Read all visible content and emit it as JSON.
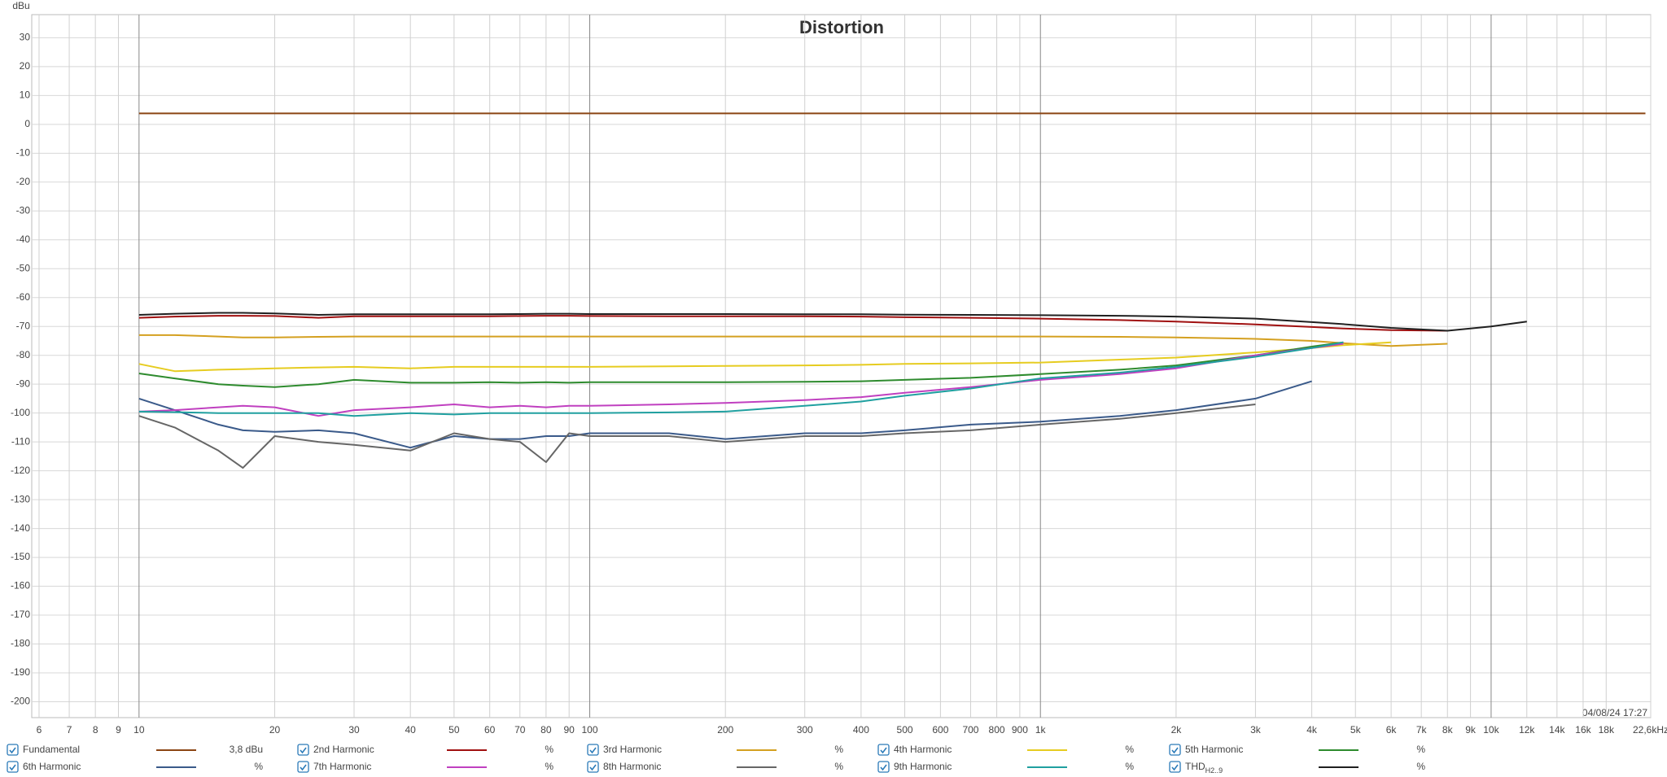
{
  "chart_data": {
    "type": "line",
    "title": "Distortion",
    "y_label": "dBu",
    "timestamp": "04/08/24 17:27",
    "x_scale": "log",
    "grid": true,
    "x": [
      10,
      12,
      15,
      17,
      20,
      25,
      30,
      40,
      50,
      60,
      70,
      80,
      90,
      100,
      150,
      200,
      300,
      400,
      500,
      700,
      1000,
      1500,
      2000,
      3000,
      4000,
      4700,
      6000,
      8000,
      10000,
      12000,
      22000
    ],
    "xlim": [
      5.78,
      22600
    ],
    "xticks": [
      6,
      7,
      8,
      9,
      10,
      20,
      30,
      40,
      50,
      60,
      70,
      80,
      90,
      100,
      200,
      300,
      400,
      500,
      600,
      700,
      800,
      900,
      {
        "value": 1000,
        "label": "1k"
      },
      {
        "value": 2000,
        "label": "2k"
      },
      {
        "value": 3000,
        "label": "3k"
      },
      {
        "value": 4000,
        "label": "4k"
      },
      {
        "value": 5000,
        "label": "5k"
      },
      {
        "value": 6000,
        "label": "6k"
      },
      {
        "value": 7000,
        "label": "7k"
      },
      {
        "value": 8000,
        "label": "8k"
      },
      {
        "value": 9000,
        "label": "9k"
      },
      {
        "value": 10000,
        "label": "10k"
      },
      {
        "value": 12000,
        "label": "12k"
      },
      {
        "value": 14000,
        "label": "14k"
      },
      {
        "value": 16000,
        "label": "16k"
      },
      {
        "value": 18000,
        "label": "18k"
      },
      {
        "value": 22600,
        "label": "22,6kHz"
      }
    ],
    "ylim": [
      -205.5,
      38
    ],
    "yticks": [
      30,
      20,
      10,
      0,
      -10,
      -20,
      -30,
      -40,
      -50,
      -60,
      -70,
      -80,
      -90,
      -100,
      -110,
      -120,
      -130,
      -140,
      -150,
      -160,
      -170,
      -180,
      -190,
      -200
    ],
    "series": [
      {
        "name": "Fundamental",
        "color": "#8b4513",
        "readout": "3,8 dBu",
        "values": [
          3.8,
          3.8,
          3.8,
          3.8,
          3.8,
          3.8,
          3.8,
          3.8,
          3.8,
          3.8,
          3.8,
          3.8,
          3.8,
          3.8,
          3.8,
          3.8,
          3.8,
          3.8,
          3.8,
          3.8,
          3.8,
          3.8,
          3.8,
          3.8,
          3.8,
          3.8,
          3.8,
          3.8,
          3.8,
          3.8,
          3.8
        ]
      },
      {
        "name": "2nd Harmonic",
        "color": "#a01010",
        "readout": "%",
        "values": [
          -67,
          -66.6,
          -66.3,
          -66.3,
          -66.4,
          -67,
          -66.5,
          -66.5,
          -66.5,
          -66.5,
          -66.4,
          -66.3,
          -66.3,
          -66.4,
          -66.5,
          -66.5,
          -66.5,
          -66.6,
          -66.8,
          -67,
          -67.3,
          -67.8,
          -68.3,
          -69.3,
          -70.2,
          -70.7,
          -71.3,
          -71.5,
          null,
          null,
          null
        ]
      },
      {
        "name": "3rd Harmonic",
        "color": "#d4a020",
        "readout": "%",
        "values": [
          -73,
          -73,
          -73.5,
          -73.8,
          -73.8,
          -73.6,
          -73.5,
          -73.5,
          -73.5,
          -73.5,
          -73.5,
          -73.5,
          -73.5,
          -73.5,
          -73.5,
          -73.5,
          -73.5,
          -73.5,
          -73.5,
          -73.5,
          -73.5,
          -73.6,
          -73.8,
          -74.3,
          -75,
          -75.8,
          -76.8,
          -76,
          null,
          null,
          null
        ]
      },
      {
        "name": "4th Harmonic",
        "color": "#e6cc20",
        "readout": "%",
        "values": [
          -83,
          -85.5,
          -85,
          -84.8,
          -84.5,
          -84.2,
          -84,
          -84.5,
          -84,
          -84,
          -84,
          -84,
          -84,
          -84,
          -83.8,
          -83.7,
          -83.5,
          -83.3,
          -83,
          -82.8,
          -82.5,
          -81.5,
          -80.8,
          -79,
          -77.5,
          -76.5,
          -75.5,
          null,
          null,
          null,
          null
        ]
      },
      {
        "name": "5th Harmonic",
        "color": "#2e8b2e",
        "readout": "%",
        "values": [
          -86.3,
          -88,
          -90,
          -90.5,
          -91,
          -90,
          -88.5,
          -89.5,
          -89.5,
          -89.3,
          -89.5,
          -89.3,
          -89.5,
          -89.3,
          -89.3,
          -89.3,
          -89.2,
          -89,
          -88.5,
          -87.8,
          -86.5,
          -85,
          -83.5,
          -80,
          -77,
          -75.5,
          null,
          null,
          null,
          null,
          null
        ]
      },
      {
        "name": "6th Harmonic",
        "color": "#3a5a8a",
        "readout": "%",
        "values": [
          -95,
          -99,
          -104,
          -106,
          -106.5,
          -106,
          -107,
          -112,
          -108,
          -109,
          -109,
          -108,
          -108,
          -107,
          -107,
          -109,
          -107,
          -107,
          -106,
          -104,
          -103,
          -101,
          -99,
          -95,
          -89,
          null,
          null,
          null,
          null,
          null,
          null
        ]
      },
      {
        "name": "7th Harmonic",
        "color": "#c040c0",
        "readout": "%",
        "values": [
          -99.5,
          -99,
          -98,
          -97.5,
          -98,
          -101,
          -99,
          -98,
          -97,
          -98,
          -97.5,
          -98,
          -97.5,
          -97.5,
          -97,
          -96.5,
          -95.5,
          -94.5,
          -93,
          -91,
          -88.5,
          -86.5,
          -84.5,
          -80,
          -77.5,
          -76,
          null,
          null,
          null,
          null,
          null
        ]
      },
      {
        "name": "8th Harmonic",
        "color": "#666666",
        "readout": "%",
        "values": [
          -101,
          -105,
          -113,
          -119,
          -108,
          -110,
          -111,
          -113,
          -107,
          -109,
          -110,
          -117,
          -107,
          -108,
          -108,
          -110,
          -108,
          -108,
          -107,
          -106,
          -104,
          -102,
          -100,
          -97,
          null,
          null,
          null,
          null,
          null,
          null,
          null
        ]
      },
      {
        "name": "9th Harmonic",
        "color": "#20a0a0",
        "readout": "%",
        "values": [
          -99.5,
          -99.7,
          -100,
          -100,
          -100,
          -100,
          -101,
          -100,
          -100.5,
          -100,
          -100,
          -100,
          -100,
          -100,
          -99.8,
          -99.5,
          -97.5,
          -96,
          -94,
          -91.5,
          -88,
          -86,
          -84,
          -80.5,
          -77.5,
          -75.5,
          null,
          null,
          null,
          null,
          null
        ]
      },
      {
        "name": "THD",
        "subscript": "H2..9",
        "color": "#202020",
        "readout": "%",
        "values": [
          -66,
          -65.6,
          -65.3,
          -65.3,
          -65.5,
          -66,
          -65.8,
          -65.8,
          -65.8,
          -65.8,
          -65.7,
          -65.6,
          -65.6,
          -65.7,
          -65.7,
          -65.7,
          -65.8,
          -65.8,
          -65.9,
          -66,
          -66.1,
          -66.3,
          -66.6,
          -67.3,
          -68.5,
          -69.2,
          -70.5,
          -71.5,
          -70,
          -68.3,
          null
        ]
      }
    ]
  }
}
